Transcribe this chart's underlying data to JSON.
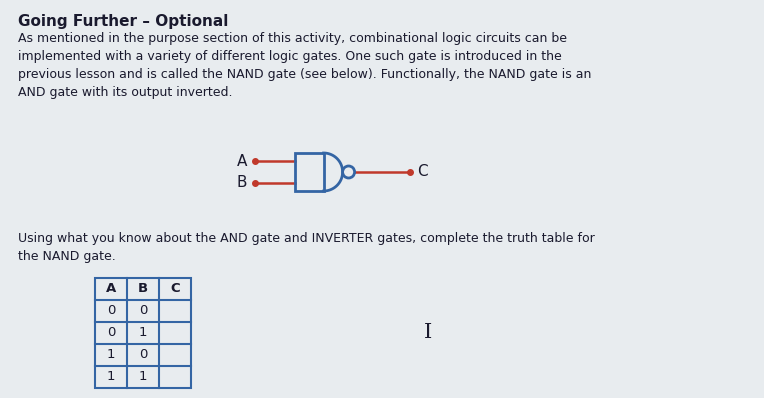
{
  "title": "Going Further – Optional",
  "body_text": "As mentioned in the purpose section of this activity, combinational logic circuits can be\nimplemented with a variety of different logic gates. One such gate is introduced in the\nprevious lesson and is called the NAND gate (see below). Functionally, the NAND gate is an\nAND gate with its output inverted.",
  "bottom_text": "Using what you know about the AND gate and INVERTER gates, complete the truth table for\nthe NAND gate.",
  "gate_label_A": "A",
  "gate_label_B": "B",
  "gate_label_C": "C",
  "table_headers": [
    "A",
    "B",
    "C"
  ],
  "table_rows": [
    [
      "0",
      "0",
      ""
    ],
    [
      "0",
      "1",
      ""
    ],
    [
      "1",
      "0",
      ""
    ],
    [
      "1",
      "1",
      ""
    ]
  ],
  "bg_color": "#cfd6de",
  "panel_color": "#e8ecef",
  "text_color": "#1a1a2e",
  "table_border_color": "#3465a4",
  "gate_color": "#3465a4",
  "wire_color": "#c0392b",
  "cursor_symbol": "I",
  "fig_w": 7.64,
  "fig_h": 3.98,
  "dpi": 100
}
